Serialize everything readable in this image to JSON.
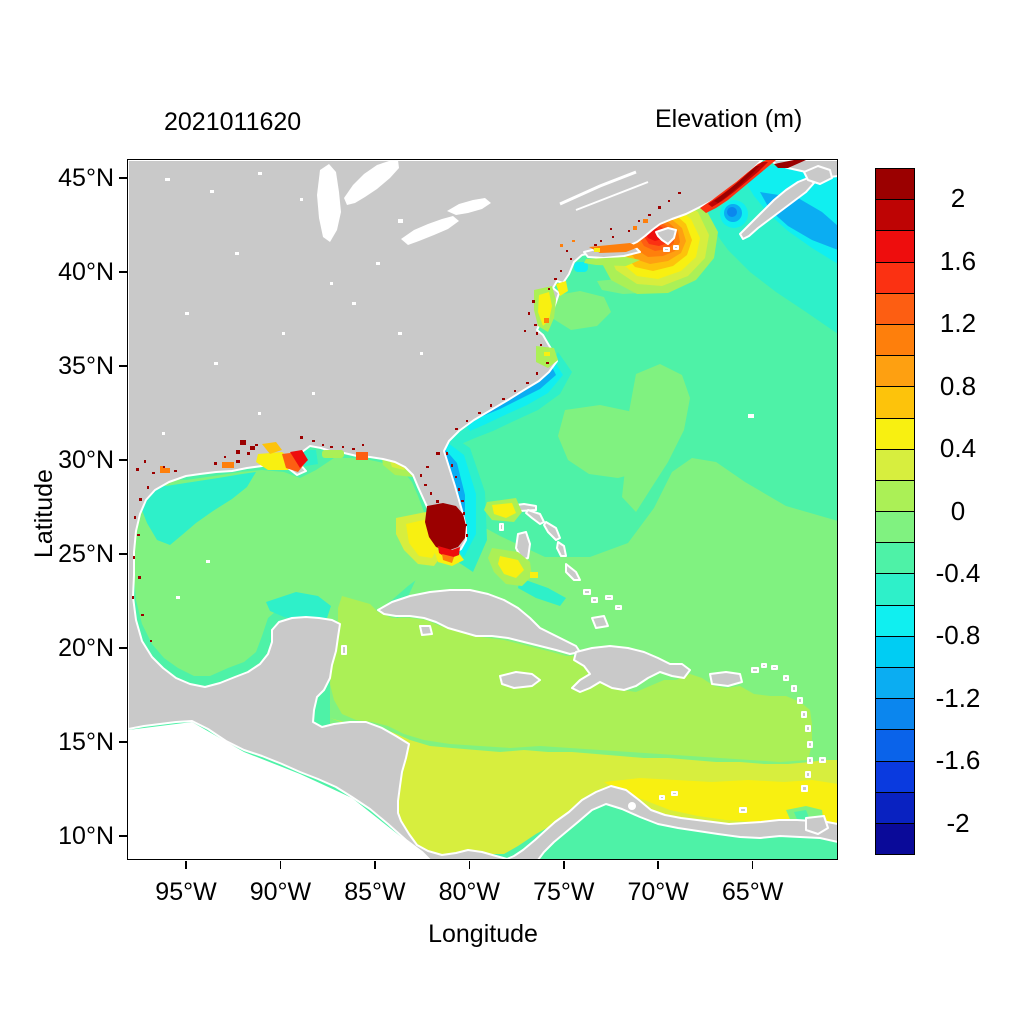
{
  "figure": {
    "left_title": "2021011620",
    "right_title": "Elevation (m)"
  },
  "axes": {
    "x": {
      "label": "Longitude",
      "ticks": [
        "95°W",
        "90°W",
        "85°W",
        "80°W",
        "75°W",
        "70°W",
        "65°W"
      ]
    },
    "y": {
      "label": "Latitude",
      "ticks": [
        "45°N",
        "40°N",
        "35°N",
        "30°N",
        "25°N",
        "20°N",
        "15°N",
        "10°N"
      ]
    }
  },
  "colorbar": {
    "tick_labels": [
      "2",
      "1.6",
      "1.2",
      "0.8",
      "0.4",
      "0",
      "-0.4",
      "-0.8",
      "-1.2",
      "-1.6",
      "-2"
    ],
    "n_cells": 22,
    "cell_step": 0.2,
    "range": [
      -2.2,
      2.2
    ],
    "colors": [
      "#9B0000",
      "#BE0404",
      "#EE0D0D",
      "#FB3112",
      "#FD5E12",
      "#FE7F0C",
      "#FEA011",
      "#FDC30B",
      "#F8F011",
      "#D7EE3E",
      "#ABF056",
      "#80F280",
      "#4EF2A7",
      "#2EF0C9",
      "#10EFF0",
      "#00CDF3",
      "#0BADF2",
      "#0B86EE",
      "#0A63EA",
      "#0A3ADF",
      "#0922C1",
      "#0A0A99"
    ]
  },
  "map_style": {
    "land_color": "#C9C9C9",
    "outside_domain_color": "#FFFFFF",
    "frame_color": "#000000"
  },
  "chart_data": {
    "type": "heatmap",
    "title": "2021011620",
    "colorbar_title": "Elevation (m)",
    "xlabel": "Longitude",
    "ylabel": "Latitude",
    "x_ticks_deg_west": [
      95,
      90,
      85,
      80,
      75,
      70,
      65
    ],
    "y_ticks_deg_north": [
      45,
      40,
      35,
      30,
      25,
      20,
      15,
      10
    ],
    "approx_extent": {
      "lon_west": [
        98.3,
        60.5
      ],
      "lat_north": [
        8.7,
        46.0
      ]
    },
    "units": "m",
    "levels": {
      "min": -2.2,
      "max": 2.2,
      "step": 0.2
    },
    "palette_levels": [
      ">2.0",
      "1.8–2.0",
      "1.6–1.8",
      "1.4–1.6",
      "1.2–1.4",
      "1.0–1.2",
      "0.8–1.0",
      "0.6–0.8",
      "0.4–0.6",
      "0.2–0.4",
      "0.0–0.2",
      "-0.2–0.0",
      "-0.4–-0.2",
      "-0.6–-0.4",
      "-0.8–-0.6",
      "-1.0–-0.8",
      "-1.2–-1.0",
      "-1.4–-1.2",
      "-1.6–-1.4",
      "-1.8–-1.6",
      "-2.0–-1.8",
      "<-2.0"
    ],
    "features": [
      {
        "region": "Gulf of Maine bullseye",
        "elevation_m": "+0.2 to +1.8 concentric rings, red core near Maine coast"
      },
      {
        "region": "Bay of Fundy / Minas Basin streak",
        "elevation_m": "> +2 (dark red)"
      },
      {
        "region": "South Florida / Everglades patch",
        "elevation_m": "> +2 (dark red) with +0.4 to +1.0 fringe"
      },
      {
        "region": "Shelf south of Nova Scotia",
        "elevation_m": "-1.2 to -1.4 spot within -0.8 to -1.0 patch"
      },
      {
        "region": "US southeast coast nearshore band (Hatteras to Florida)",
        "elevation_m": "-0.6 to -1.0 (cyan/blue band)"
      },
      {
        "region": "Open western Atlantic",
        "elevation_m": "-0.4 to 0"
      },
      {
        "region": "Gulf of Mexico interior",
        "elevation_m": "-0.2 to 0, with -0.6 to -0.2 band along Texas–Louisiana shelf"
      },
      {
        "region": "Northwest and central Caribbean",
        "elevation_m": "0 to +0.2"
      },
      {
        "region": "Southern Caribbean",
        "elevation_m": "+0.2 to +0.4"
      },
      {
        "region": "Venezuela coastal band",
        "elevation_m": "+0.4 to +0.6 (yellow)"
      },
      {
        "region": "Coastal marshes (Texas–Louisiana, Chesapeake, Bahamas banks)",
        "elevation_m": "scattered +0.4 to >+2 cells"
      }
    ],
    "legend_position": "right",
    "grid": false
  }
}
